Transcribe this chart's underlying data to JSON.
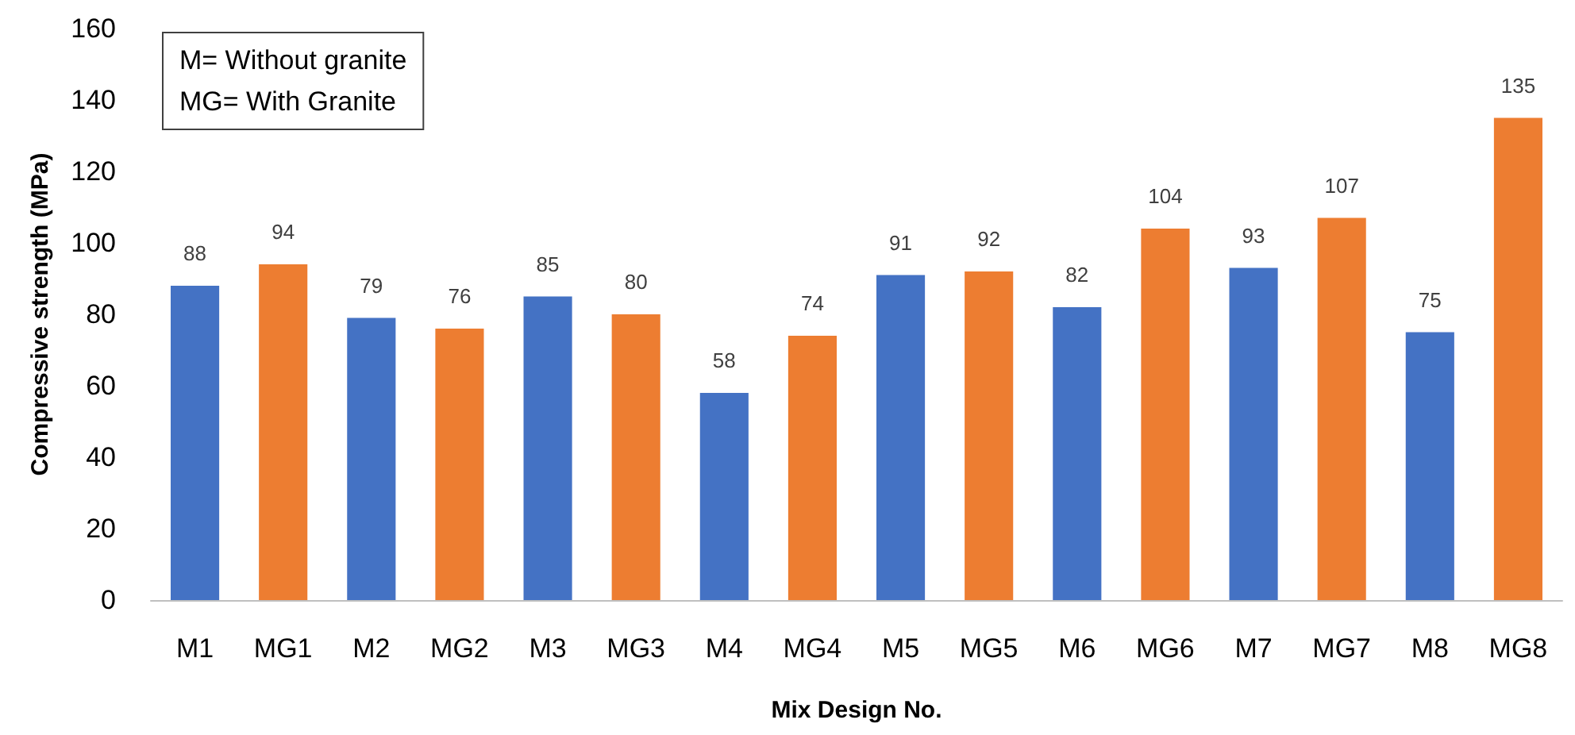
{
  "chart_data": {
    "type": "bar",
    "xlabel": "Mix Design No.",
    "ylabel": "Compressive strength (MPa)",
    "annotations": [
      "M= Without granite\nMG= With Granite"
    ],
    "categories": [
      "M1",
      "MG1",
      "M2",
      "MG2",
      "M3",
      "MG3",
      "M4",
      "MG4",
      "M5",
      "MG5",
      "M6",
      "MG6",
      "M7",
      "MG7",
      "M8",
      "MG8"
    ],
    "values": [
      88,
      94,
      79,
      76,
      85,
      80,
      58,
      74,
      91,
      92,
      82,
      104,
      93,
      107,
      75,
      135
    ],
    "colors": [
      "#4472c4",
      "#ed7d31",
      "#4472c4",
      "#ed7d31",
      "#4472c4",
      "#ed7d31",
      "#4472c4",
      "#ed7d31",
      "#4472c4",
      "#ed7d31",
      "#4472c4",
      "#ed7d31",
      "#4472c4",
      "#ed7d31",
      "#4472c4",
      "#ed7d31"
    ],
    "ylim": [
      0,
      160
    ],
    "yticks": [
      0,
      20,
      40,
      60,
      80,
      100,
      120,
      140,
      160
    ],
    "data_labels": true
  }
}
